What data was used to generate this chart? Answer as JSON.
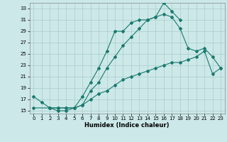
{
  "xlabel": "Humidex (Indice chaleur)",
  "bg_color": "#cce8e8",
  "grid_color": "#aacccc",
  "line_color": "#1a7a6e",
  "xlim": [
    -0.5,
    23.5
  ],
  "ylim": [
    14.5,
    34.0
  ],
  "xticks": [
    0,
    1,
    2,
    3,
    4,
    5,
    6,
    7,
    8,
    9,
    10,
    11,
    12,
    13,
    14,
    15,
    16,
    17,
    18,
    19,
    20,
    21,
    22,
    23
  ],
  "yticks": [
    15,
    17,
    19,
    21,
    23,
    25,
    27,
    29,
    31,
    33
  ],
  "line1_x": [
    0,
    1,
    2,
    3,
    4,
    5,
    6,
    7,
    8,
    9,
    10,
    11,
    12,
    13,
    14,
    15,
    16,
    17,
    18
  ],
  "line1_y": [
    17.5,
    16.5,
    15.5,
    15.0,
    15.0,
    15.5,
    17.5,
    20.0,
    22.5,
    25.5,
    29.0,
    29.0,
    30.5,
    31.0,
    31.0,
    31.5,
    34.0,
    32.5,
    31.0
  ],
  "line2_x": [
    2,
    3,
    4,
    5,
    6,
    7,
    8,
    9,
    10,
    11,
    12,
    13,
    14,
    15,
    16,
    17,
    18,
    19,
    20,
    21,
    22,
    23
  ],
  "line2_y": [
    15.5,
    15.5,
    15.5,
    15.5,
    16.0,
    18.5,
    20.0,
    22.5,
    24.5,
    26.5,
    28.0,
    29.5,
    31.0,
    31.5,
    32.0,
    31.5,
    29.5,
    26.0,
    25.5,
    26.0,
    24.5,
    22.5
  ],
  "line3_x": [
    0,
    2,
    3,
    4,
    5,
    6,
    7,
    8,
    9,
    10,
    11,
    12,
    13,
    14,
    15,
    16,
    17,
    18,
    19,
    20,
    21,
    22,
    23
  ],
  "line3_y": [
    15.5,
    15.5,
    15.5,
    15.5,
    15.5,
    16.0,
    17.0,
    18.0,
    18.5,
    19.5,
    20.5,
    21.0,
    21.5,
    22.0,
    22.5,
    23.0,
    23.5,
    23.5,
    24.0,
    24.5,
    25.5,
    21.5,
    22.5
  ]
}
